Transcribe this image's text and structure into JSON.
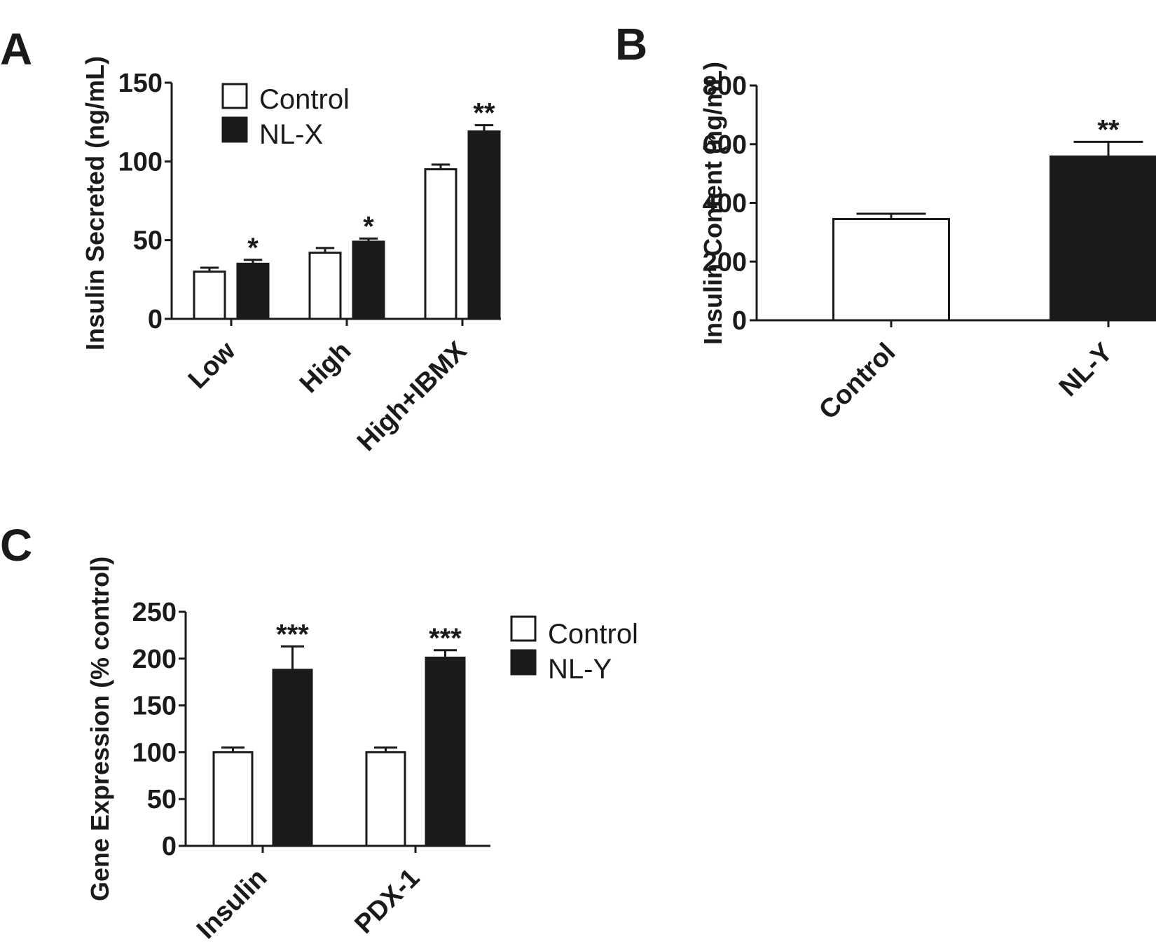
{
  "chart_data": [
    {
      "panel": "A",
      "type": "bar",
      "ylabel": "Insulin  Secreted (ng/mL)",
      "xlabel": "",
      "ylim": [
        0,
        150
      ],
      "yticks": [
        0,
        50,
        100,
        150
      ],
      "categories": [
        "Low",
        "High",
        "High+IBMX"
      ],
      "series": [
        {
          "name": "Control",
          "color": "#ffffff",
          "values": [
            30,
            42,
            95
          ],
          "errors": [
            2.5,
            3,
            3
          ]
        },
        {
          "name": "NL-X",
          "color": "#1a1a1a",
          "values": [
            35,
            49,
            119
          ],
          "errors": [
            2.5,
            2,
            4
          ]
        }
      ],
      "annotations": [
        {
          "category": 0,
          "series": 1,
          "text": "*"
        },
        {
          "category": 1,
          "series": 1,
          "text": "*"
        },
        {
          "category": 2,
          "series": 1,
          "text": "**"
        }
      ],
      "legend": "top-left"
    },
    {
      "panel": "B",
      "type": "bar",
      "ylabel": "Insulin Content (ng/mL)",
      "xlabel": "",
      "ylim": [
        0,
        800
      ],
      "yticks": [
        0,
        200,
        400,
        600,
        800
      ],
      "categories": [
        "Control",
        "NL-Y"
      ],
      "series": [
        {
          "name": "Insulin Content",
          "colors": [
            "#ffffff",
            "#1a1a1a"
          ],
          "values": [
            345,
            558
          ],
          "errors": [
            18,
            50
          ]
        }
      ],
      "annotations": [
        {
          "category": 1,
          "series": 0,
          "text": "**"
        }
      ]
    },
    {
      "panel": "C",
      "type": "bar",
      "ylabel": "Gene Expression (% control)",
      "xlabel": "",
      "ylim": [
        0,
        250
      ],
      "yticks": [
        0,
        50,
        100,
        150,
        200,
        250
      ],
      "categories": [
        "Insulin",
        "PDX-1"
      ],
      "series": [
        {
          "name": "Control",
          "color": "#ffffff",
          "values": [
            100,
            100
          ],
          "errors": [
            5,
            5
          ]
        },
        {
          "name": "NL-Y",
          "color": "#1a1a1a",
          "values": [
            188,
            201
          ],
          "errors": [
            25,
            8
          ]
        }
      ],
      "annotations": [
        {
          "category": 0,
          "series": 1,
          "text": "***"
        },
        {
          "category": 1,
          "series": 1,
          "text": "***"
        }
      ],
      "legend": "top-right"
    }
  ]
}
